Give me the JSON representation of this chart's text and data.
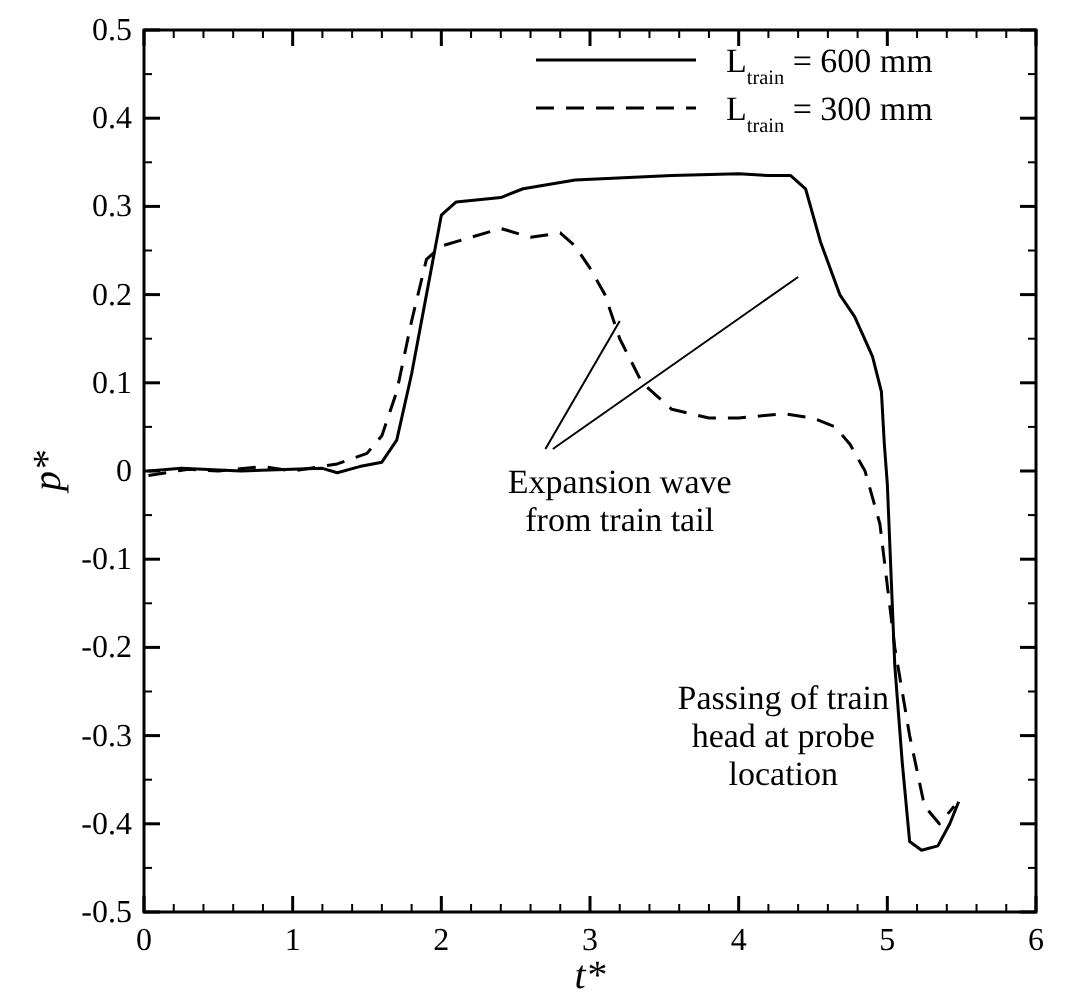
{
  "chart_data": {
    "type": "line",
    "xlabel": "t*",
    "ylabel": "p*",
    "xlim": [
      0,
      6
    ],
    "ylim": [
      -0.5,
      0.5
    ],
    "xticks": [
      0,
      1,
      2,
      3,
      4,
      5,
      6
    ],
    "yticks": [
      -0.5,
      -0.4,
      -0.3,
      -0.2,
      -0.1,
      0,
      0.1,
      0.2,
      0.3,
      0.4,
      0.5
    ],
    "legend": "top right",
    "grid": false,
    "marker": "none",
    "annotations": [
      {
        "text": "Expansion wave\nfrom train tail",
        "x": 3.2,
        "y": 0.17
      },
      "Passing of train\nhead at probe\nlocation"
    ],
    "series": [
      {
        "name": "L$_{train}$ = 600 mm",
        "color": "#000000",
        "line_style": "solid",
        "x": [
          0.03,
          0.25,
          0.65,
          1.2,
          1.3,
          1.45,
          1.6,
          1.7,
          1.8,
          1.9,
          2.0,
          2.1,
          2.4,
          2.55,
          2.9,
          3.55,
          4.0,
          4.2,
          4.35,
          4.45,
          4.55,
          4.68,
          4.78,
          4.9,
          4.96,
          4.98,
          5.0,
          5.05,
          5.1,
          5.15,
          5.23,
          5.34,
          5.42,
          5.48
        ],
        "values": [
          0,
          0.003,
          0,
          0.003,
          -0.002,
          0.005,
          0.01,
          0.035,
          0.11,
          0.2,
          0.29,
          0.305,
          0.31,
          0.32,
          0.33,
          0.335,
          0.337,
          0.335,
          0.335,
          0.32,
          0.26,
          0.2,
          0.175,
          0.13,
          0.09,
          0.03,
          -0.015,
          -0.22,
          -0.33,
          -0.42,
          -0.43,
          -0.425,
          -0.4,
          -0.375
        ]
      },
      {
        "name": "L$_{train}$ = 300 mm",
        "color": "#000000",
        "line_style": "dashed",
        "x": [
          0.03,
          0.3,
          0.5,
          0.8,
          1.0,
          1.3,
          1.5,
          1.6,
          1.7,
          1.8,
          1.9,
          2.0,
          2.2,
          2.4,
          2.6,
          2.8,
          2.9,
          3.0,
          3.1,
          3.2,
          3.35,
          3.55,
          3.8,
          4.0,
          4.3,
          4.5,
          4.65,
          4.75,
          4.85,
          4.95,
          5.0,
          5.05,
          5.15,
          5.25,
          5.35,
          5.45
        ],
        "values": [
          -0.005,
          0.002,
          0,
          0.005,
          0,
          0.008,
          0.02,
          0.04,
          0.09,
          0.17,
          0.24,
          0.255,
          0.265,
          0.275,
          0.265,
          0.27,
          0.255,
          0.23,
          0.2,
          0.15,
          0.1,
          0.07,
          0.06,
          0.06,
          0.065,
          0.06,
          0.05,
          0.03,
          0,
          -0.06,
          -0.13,
          -0.2,
          -0.3,
          -0.38,
          -0.4,
          -0.38
        ]
      }
    ]
  }
}
